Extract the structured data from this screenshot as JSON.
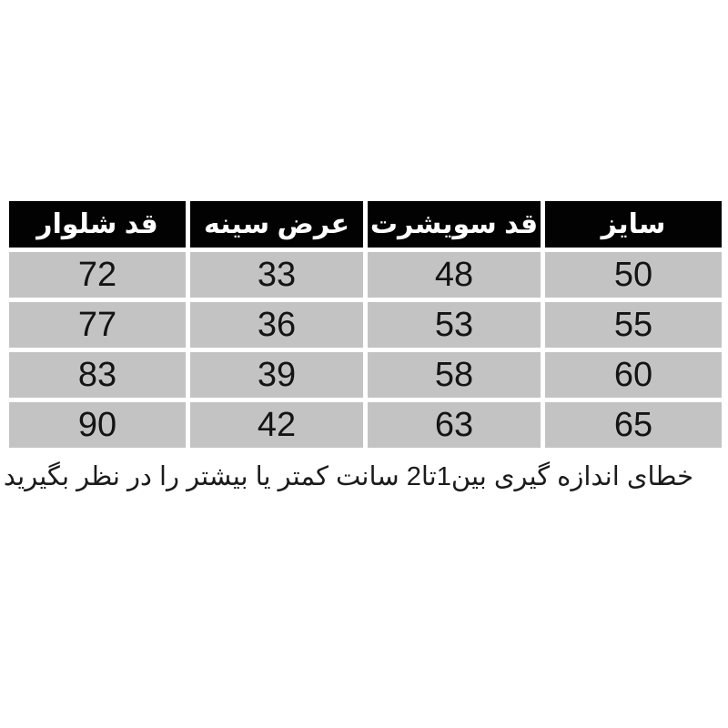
{
  "chart_data": {
    "type": "table",
    "direction": "rtl",
    "columns": [
      "سایز",
      "قد سویشرت",
      "عرض سینه",
      "قد شلوار"
    ],
    "rows": [
      [
        "50",
        "48",
        "33",
        "72"
      ],
      [
        "55",
        "53",
        "36",
        "77"
      ],
      [
        "60",
        "58",
        "39",
        "83"
      ],
      [
        "65",
        "63",
        "42",
        "90"
      ]
    ]
  },
  "note": "خطای اندازه گیری بین1تا2 سانت کمتر یا بیشتر را در نظر بگیرید",
  "colors": {
    "background": "#ffffff",
    "header_bg": "#020202",
    "header_text": "#ffffff",
    "row_bg": "#c3c3c3",
    "cell_text": "#141414"
  }
}
